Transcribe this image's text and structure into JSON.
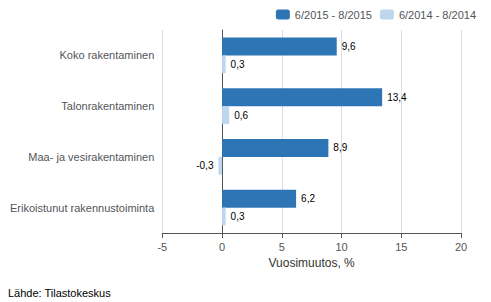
{
  "chart_data": {
    "type": "bar",
    "orientation": "horizontal",
    "categories": [
      "Koko rakentaminen",
      "Talonrakentaminen",
      "Maa- ja vesirakentaminen",
      "Erikoistunut rakennustoiminta"
    ],
    "series": [
      {
        "name": "6/2015 - 8/2015",
        "color": "#2E75B6",
        "values": [
          9.6,
          13.4,
          8.9,
          6.2
        ],
        "value_labels": [
          "9,6",
          "13,4",
          "8,9",
          "6,2"
        ]
      },
      {
        "name": "6/2014 - 8/2014",
        "color": "#BDD7EE",
        "values": [
          0.3,
          0.6,
          -0.3,
          0.3
        ],
        "value_labels": [
          "0,3",
          "0,6",
          "-0,3",
          "0,3"
        ]
      }
    ],
    "xlabel": "Vuosimuutos, %",
    "xlim": [
      -5,
      20
    ],
    "xticks": [
      -5,
      0,
      5,
      10,
      15,
      20
    ],
    "grid": true,
    "legend": "upper right",
    "data_labels": true,
    "annotations": [
      "Lähde: Tilastokeskus"
    ]
  }
}
